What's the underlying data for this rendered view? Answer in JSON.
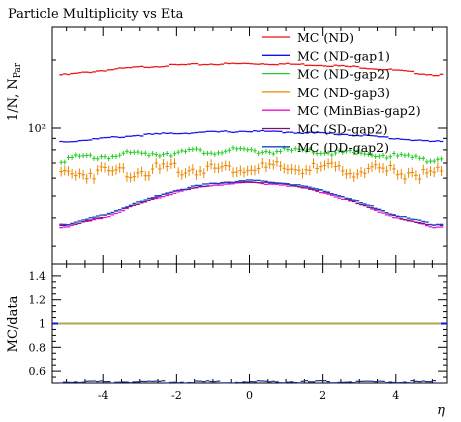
{
  "chart_data": {
    "type": "line",
    "title": "Particle Multiplicity vs Eta",
    "xlabel": "η",
    "ylabel": "1/N, N_Par",
    "ylabel_main": "1/N, N",
    "ylabel_sub": "Par",
    "xlim": [
      -5.4,
      5.4
    ],
    "ylim": [
      25,
      280
    ],
    "yscale": "log",
    "y_ticks": [
      {
        "value": 100,
        "label": "10²"
      }
    ],
    "x_ticks": [
      {
        "value": -4,
        "label": "-4"
      },
      {
        "value": -2,
        "label": "-2"
      },
      {
        "value": 0,
        "label": "0"
      },
      {
        "value": 2,
        "label": "2"
      },
      {
        "value": 4,
        "label": "4"
      }
    ],
    "legend_position": "top-right",
    "series": [
      {
        "name": "MC (ND)",
        "color": "#ee1111",
        "style": "line",
        "x": [
          -5,
          -4,
          -3,
          -2,
          -1,
          0,
          1,
          2,
          3,
          4,
          5
        ],
        "values": [
          172,
          180,
          186,
          190,
          192,
          193,
          192,
          190,
          186,
          180,
          172
        ]
      },
      {
        "name": "MC (ND-gap1)",
        "color": "#1111ee",
        "style": "line",
        "x": [
          -5,
          -4,
          -3,
          -2,
          -1,
          0,
          1,
          2,
          3,
          4,
          5
        ],
        "values": [
          87,
          90,
          93,
          95,
          96,
          97,
          96,
          95,
          93,
          90,
          87
        ]
      },
      {
        "name": "MC (ND-gap2)",
        "color": "#22cc22",
        "style": "points",
        "x": [
          -5,
          -4,
          -3,
          -2,
          -1,
          0,
          1,
          2,
          3,
          4,
          5
        ],
        "values": [
          73,
          75,
          77,
          78,
          79,
          79,
          79,
          78,
          77,
          75,
          73
        ]
      },
      {
        "name": "MC (ND-gap3)",
        "color": "#ee8800",
        "style": "points",
        "x": [
          -5,
          -4,
          -3,
          -2,
          -1,
          0,
          1,
          2,
          3,
          4,
          5
        ],
        "values": [
          63,
          64,
          65,
          66,
          66,
          67,
          66,
          66,
          65,
          64,
          63
        ]
      },
      {
        "name": "MC (MinBias-gap2)",
        "color": "#ee11cc",
        "style": "line",
        "x": [
          -5,
          -4,
          -3,
          -2,
          -1,
          0,
          1,
          2,
          3,
          4,
          5
        ],
        "values": [
          36.5,
          40,
          46,
          52,
          56,
          57.5,
          56,
          52,
          46,
          40,
          36.5
        ]
      },
      {
        "name": "MC (SD-gap2)",
        "color": "#771177",
        "style": "line",
        "x": [
          -5,
          -4,
          -3,
          -2,
          -1,
          0,
          1,
          2,
          3,
          4,
          5
        ],
        "values": [
          37,
          40.5,
          46.5,
          52.5,
          56.5,
          58,
          56.5,
          52.5,
          46.5,
          40.5,
          37
        ]
      },
      {
        "name": "MC (DD-gap2)",
        "color": "#1144cc",
        "style": "line",
        "x": [
          -5,
          -4,
          -3,
          -2,
          -1,
          0,
          1,
          2,
          3,
          4,
          5
        ],
        "values": [
          37.5,
          41,
          47,
          53,
          57,
          58.5,
          57,
          53,
          47,
          41,
          37.5
        ]
      }
    ],
    "ratio_panel": {
      "ylabel": "MC/data",
      "ylim": [
        0.5,
        1.5
      ],
      "y_ticks": [
        {
          "value": 0.6,
          "label": "0.6"
        },
        {
          "value": 0.8,
          "label": "0.8"
        },
        {
          "value": 1,
          "label": "1"
        },
        {
          "value": 1.2,
          "label": "1.2"
        },
        {
          "value": 1.4,
          "label": "1.4"
        }
      ],
      "reference_line": 1,
      "reference_color": "#aaaa55",
      "low_band_value": 0.51
    }
  }
}
